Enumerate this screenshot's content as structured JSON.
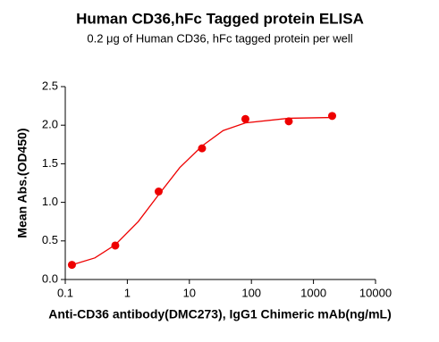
{
  "chart_data": {
    "type": "scatter",
    "title": "Human CD36,hFc Tagged protein ELISA",
    "subtitle": "0.2 μg of Human CD36, hFc tagged protein per well",
    "xlabel": "Anti-CD36 antibody(DMC273), IgG1 Chimeric mAb(ng/mL)",
    "ylabel": "Mean Abs.(OD450)",
    "xscale": "log",
    "xlim": [
      0.1,
      10000
    ],
    "xticks": [
      0.1,
      1,
      10,
      100,
      1000,
      10000
    ],
    "ylim": [
      0,
      2.5
    ],
    "yticks": [
      {
        "value": 0,
        "label": "0.0"
      },
      0.5,
      {
        "value": 1,
        "label": "1.0"
      },
      1.5,
      {
        "value": 2,
        "label": "2.0"
      },
      2.5
    ],
    "color": "#ee0000",
    "x": [
      0.128,
      0.64,
      3.2,
      16,
      80,
      400,
      2000
    ],
    "values": [
      0.19,
      0.44,
      1.14,
      1.7,
      2.08,
      2.05,
      2.12
    ],
    "curve": {
      "color": "#ee0000",
      "x": [
        0.128,
        0.3,
        0.64,
        1.5,
        3.2,
        7,
        16,
        35,
        80,
        400,
        2000
      ],
      "values": [
        0.19,
        0.28,
        0.45,
        0.75,
        1.1,
        1.45,
        1.73,
        1.93,
        2.03,
        2.09,
        2.1
      ]
    }
  }
}
